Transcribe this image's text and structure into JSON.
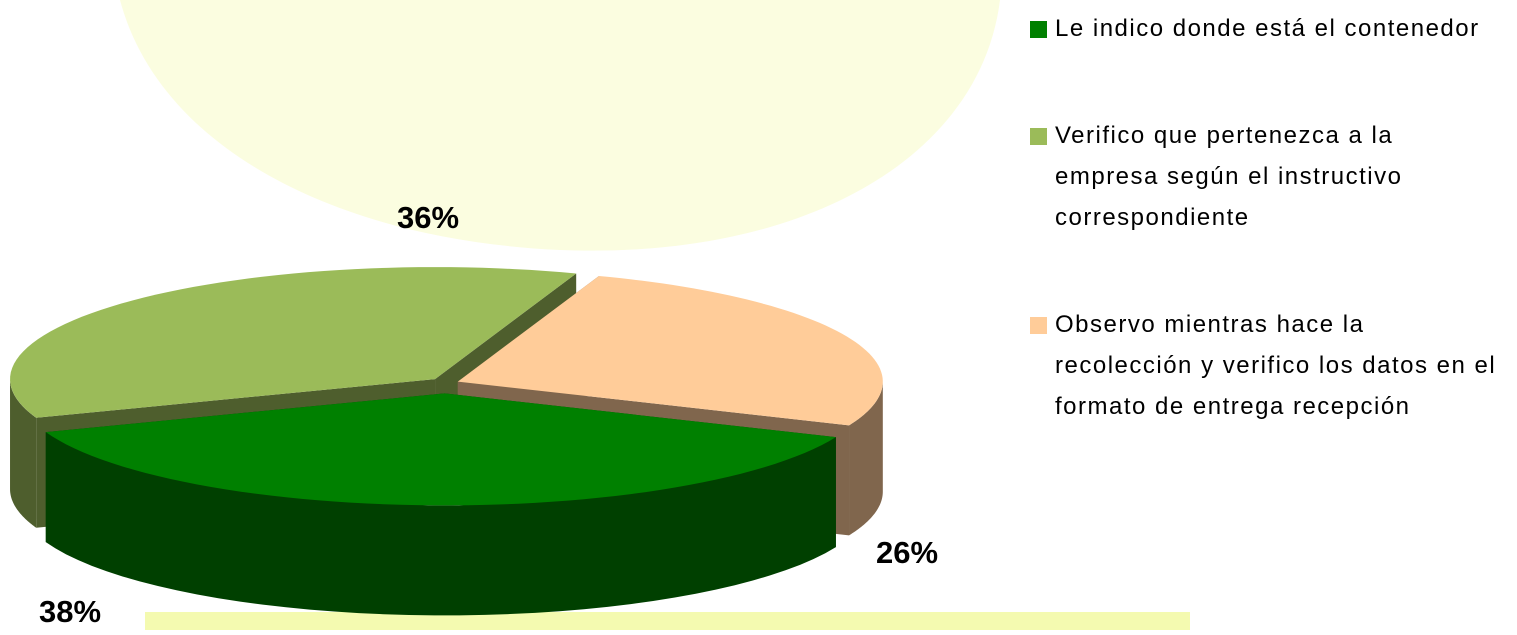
{
  "chart_data": {
    "type": "pie3d",
    "categories": [
      "Le indico donde está el contenedor",
      "Verifico que pertenezca a la empresa según el instructivo correspondiente",
      "Observo mientras hace la recolección y verifico los datos en el formato de entrega recepción"
    ],
    "values": [
      38,
      36,
      26
    ],
    "value_labels": [
      "38%",
      "36%",
      "26%"
    ],
    "colors": [
      "#008000",
      "#9bbb59",
      "#ffcc99"
    ],
    "legend": "right"
  }
}
